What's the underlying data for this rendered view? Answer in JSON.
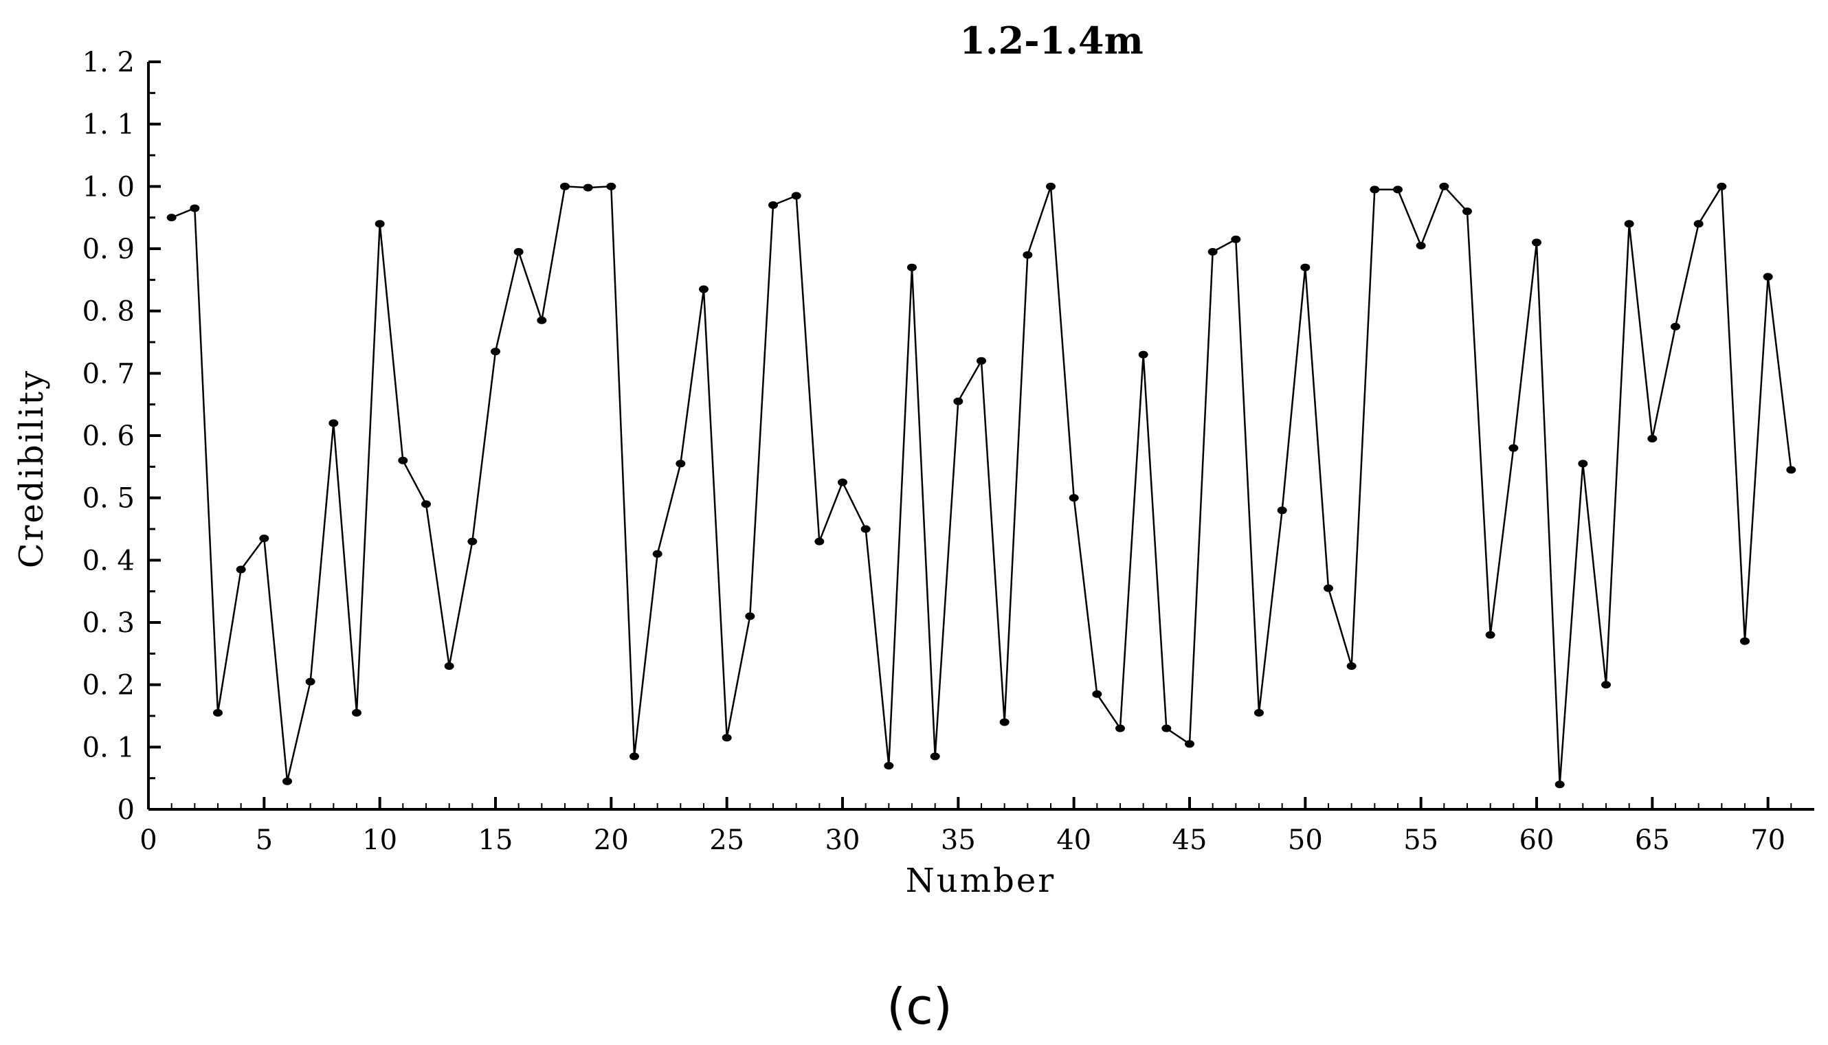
{
  "chart_data": {
    "type": "line",
    "title": "1.2-1.4m",
    "xlabel": "Number",
    "ylabel": "Credibility",
    "panel_label": "(c)",
    "xlim": [
      0,
      72
    ],
    "ylim": [
      0,
      1.2
    ],
    "xticks": [
      0,
      5,
      10,
      15,
      20,
      25,
      30,
      35,
      40,
      45,
      50,
      55,
      60,
      65,
      70
    ],
    "yticks": [
      0,
      0.1,
      0.2,
      0.3,
      0.4,
      0.5,
      0.6,
      0.7,
      0.8,
      0.9,
      1.0,
      1.1,
      1.2
    ],
    "xtick_labels": [
      "0",
      "5",
      "10",
      "15",
      "20",
      "25",
      "30",
      "35",
      "40",
      "45",
      "50",
      "55",
      "60",
      "65",
      "70"
    ],
    "ytick_labels": [
      "0",
      "0. 1",
      "0. 2",
      "0. 3",
      "0. 4",
      "0. 5",
      "0. 6",
      "0. 7",
      "0. 8",
      "0. 9",
      "1. 0",
      "1. 1",
      "1. 2"
    ],
    "grid": false,
    "series": [
      {
        "x": [
          1,
          2,
          3,
          4,
          5,
          6,
          7,
          8,
          9,
          10,
          11,
          12,
          13,
          14,
          15,
          16,
          17,
          18,
          19,
          20,
          21,
          22,
          23,
          24,
          25,
          26,
          27,
          28,
          29,
          30,
          31,
          32,
          33,
          34,
          35,
          36,
          37,
          38,
          39,
          40,
          41,
          42,
          43,
          44,
          45,
          46,
          47,
          48,
          49,
          50,
          51,
          52,
          53,
          54,
          55,
          56,
          57,
          58,
          59,
          60,
          61,
          62,
          63,
          64,
          65,
          66,
          67,
          68,
          69,
          70,
          71
        ],
        "values": [
          0.95,
          0.965,
          0.155,
          0.385,
          0.435,
          0.045,
          0.205,
          0.62,
          0.155,
          0.94,
          0.56,
          0.49,
          0.23,
          0.43,
          0.735,
          0.895,
          0.785,
          1.0,
          0.998,
          1.0,
          0.085,
          0.41,
          0.555,
          0.835,
          0.115,
          0.31,
          0.97,
          0.985,
          0.43,
          0.525,
          0.45,
          0.07,
          0.87,
          0.085,
          0.655,
          0.72,
          0.14,
          0.89,
          1.0,
          0.5,
          0.185,
          0.13,
          0.73,
          0.13,
          0.105,
          0.895,
          0.915,
          0.155,
          0.48,
          0.87,
          0.355,
          0.23,
          0.995,
          0.995,
          0.905,
          1.0,
          0.96,
          0.28,
          0.58,
          0.91,
          0.04,
          0.555,
          0.2,
          0.94,
          0.595,
          0.775,
          0.94,
          1.0,
          0.27,
          0.855,
          0.545
        ]
      }
    ]
  },
  "colors": {
    "line": "#000000",
    "marker": "#000000",
    "axis": "#000000"
  }
}
